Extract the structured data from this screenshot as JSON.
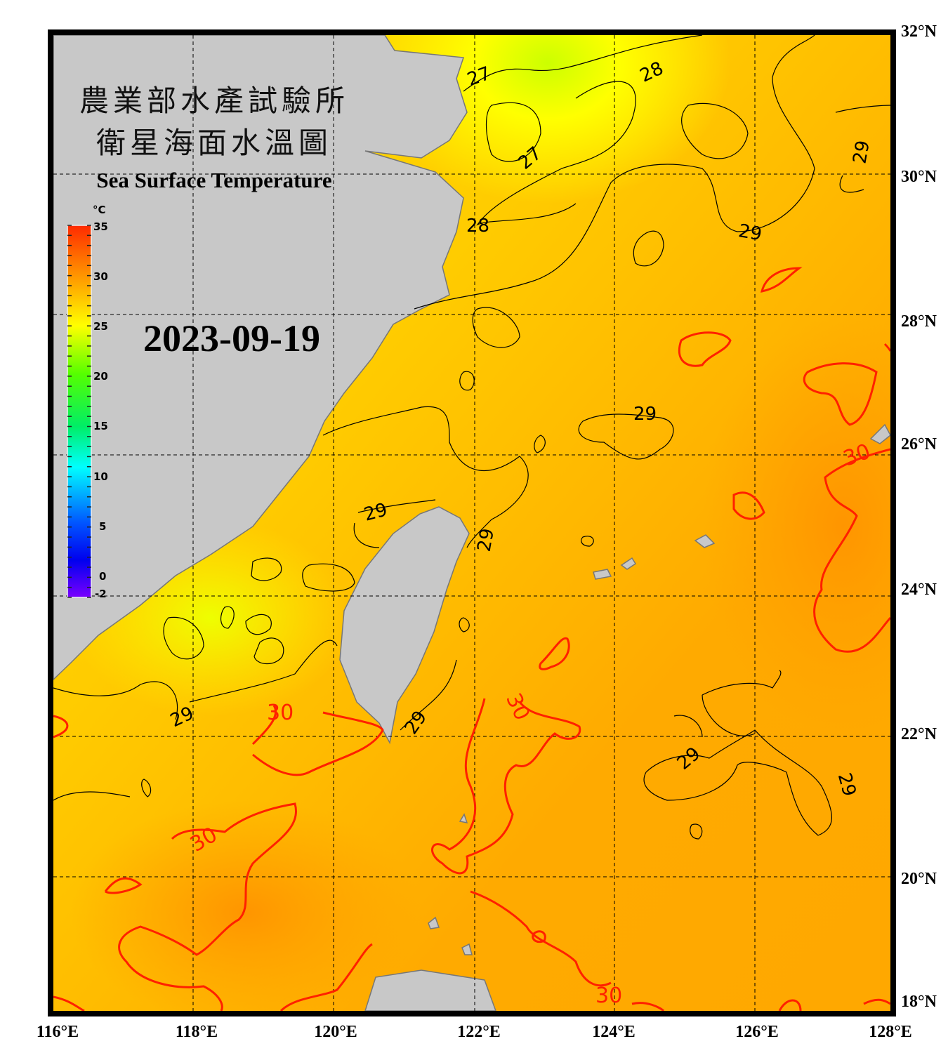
{
  "title_zh": [
    "農業部水產試驗所",
    "衛星海面水溫圖"
  ],
  "title_en": "Sea Surface Temperature",
  "date": "2023-09-19",
  "colorbar": {
    "unit": "°C",
    "ticks": [
      "35",
      "30",
      "25",
      "20",
      "15",
      "10",
      "5",
      "0",
      "-2"
    ],
    "colors": [
      "#ff2a00",
      "#ff9900",
      "#ffff00",
      "#55ff00",
      "#00ff66",
      "#00ffff",
      "#0066ff",
      "#0000ee",
      "#7a00ff"
    ]
  },
  "lon_labels": [
    "116°E",
    "118°E",
    "120°E",
    "122°E",
    "124°E",
    "126°E",
    "128°E"
  ],
  "lat_labels": [
    "32°N",
    "30°N",
    "28°N",
    "26°N",
    "24°N",
    "22°N",
    "20°N",
    "18°N"
  ],
  "contour_labels": [
    "27",
    "28",
    "27",
    "28",
    "29",
    "29",
    "29",
    "29",
    "29",
    "29",
    "29",
    "29",
    "29",
    "30",
    "30",
    "30",
    "30",
    "30"
  ],
  "colors": {
    "land": "#c8c8c8",
    "sea_warm": "#ffb300",
    "sea_cool": "#ffee00",
    "contour_30": "#ff2000",
    "contour_other": "#000000"
  }
}
